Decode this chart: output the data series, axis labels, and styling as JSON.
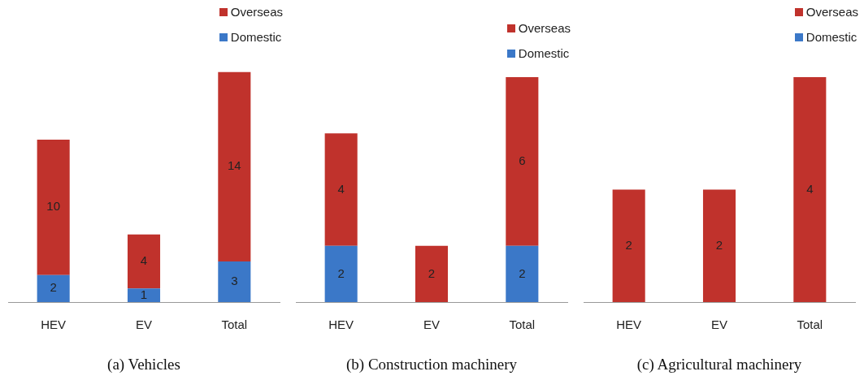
{
  "chart_data": [
    {
      "type": "bar",
      "stacked": true,
      "xlabel": "(a) Vehicles",
      "categories": [
        "HEV",
        "EV",
        "Total"
      ],
      "data_labels": true,
      "legend": "top right",
      "tick_labels": "x",
      "series": [
        {
          "name": "Domestic",
          "color": "#3b78c8",
          "values": [
            2,
            1,
            3
          ]
        },
        {
          "name": "Overseas",
          "color": "#c0322c",
          "values": [
            10,
            4,
            14
          ]
        }
      ]
    },
    {
      "type": "bar",
      "stacked": true,
      "xlabel": "(b) Construction  machinery",
      "categories": [
        "HEV",
        "EV",
        "Total"
      ],
      "data_labels": true,
      "legend": "top right",
      "tick_labels": "x",
      "series": [
        {
          "name": "Domestic",
          "color": "#3b78c8",
          "values": [
            2,
            null,
            2
          ]
        },
        {
          "name": "Overseas",
          "color": "#c0322c",
          "values": [
            4,
            2,
            6
          ]
        }
      ]
    },
    {
      "type": "bar",
      "stacked": true,
      "xlabel": "(c) Agricultural  machinery",
      "categories": [
        "HEV",
        "EV",
        "Total"
      ],
      "data_labels": true,
      "legend": "top right",
      "tick_labels": "x",
      "series": [
        {
          "name": "Domestic",
          "color": "#3b78c8",
          "values": [
            null,
            null,
            null
          ]
        },
        {
          "name": "Overseas",
          "color": "#c0322c",
          "values": [
            2,
            2,
            4
          ]
        }
      ]
    }
  ]
}
